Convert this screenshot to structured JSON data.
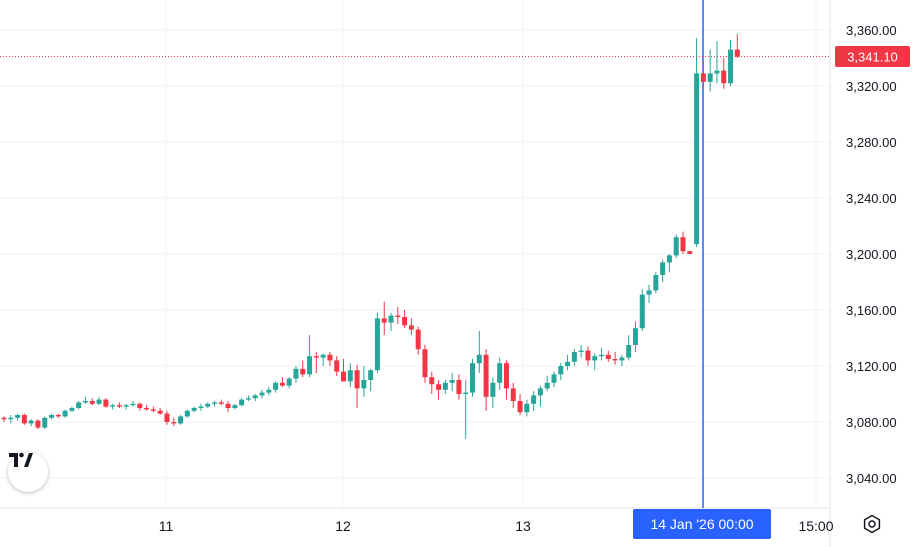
{
  "chart_data": {
    "type": "candlestick",
    "y_range": [
      3020,
      3370
    ],
    "y_ticks": [
      3040,
      3080,
      3120,
      3160,
      3200,
      3240,
      3280,
      3320,
      3360
    ],
    "y_tick_labels": [
      "3,040.00",
      "3,080.00",
      "3,120.00",
      "3,160.00",
      "3,200.00",
      "3,240.00",
      "3,280.00",
      "3,320.00",
      "3,360.00"
    ],
    "x_labels": [
      "11",
      "12",
      "13",
      "15:00"
    ],
    "grid": true,
    "last_price": 3341.1,
    "last_price_label": "3,341.10",
    "crosshair_label": "14 Jan '26   00:00",
    "colors": {
      "up": "#26a69a",
      "down": "#f23645",
      "crosshair": "#2962ff",
      "price_line": "#f23645",
      "grid": "#f0f3fa",
      "axis_text": "#131722"
    },
    "candles": [
      [
        3083,
        3084,
        3080,
        3082
      ],
      [
        3082,
        3085,
        3079,
        3083
      ],
      [
        3083,
        3086,
        3081,
        3085
      ],
      [
        3085,
        3086,
        3078,
        3079
      ],
      [
        3079,
        3082,
        3077,
        3081
      ],
      [
        3081,
        3082,
        3075,
        3076
      ],
      [
        3076,
        3084,
        3075,
        3083
      ],
      [
        3083,
        3086,
        3082,
        3085
      ],
      [
        3085,
        3086,
        3083,
        3084
      ],
      [
        3084,
        3089,
        3083,
        3088
      ],
      [
        3088,
        3091,
        3087,
        3090
      ],
      [
        3090,
        3095,
        3089,
        3094
      ],
      [
        3094,
        3098,
        3093,
        3095
      ],
      [
        3095,
        3097,
        3092,
        3093
      ],
      [
        3093,
        3098,
        3092,
        3096
      ],
      [
        3096,
        3097,
        3090,
        3091
      ],
      [
        3091,
        3093,
        3089,
        3092
      ],
      [
        3092,
        3094,
        3090,
        3091
      ],
      [
        3091,
        3093,
        3089,
        3092
      ],
      [
        3092,
        3095,
        3091,
        3093
      ],
      [
        3093,
        3094,
        3088,
        3090
      ],
      [
        3090,
        3092,
        3088,
        3089
      ],
      [
        3089,
        3091,
        3087,
        3088
      ],
      [
        3088,
        3090,
        3085,
        3086
      ],
      [
        3086,
        3088,
        3078,
        3080
      ],
      [
        3080,
        3083,
        3077,
        3079
      ],
      [
        3079,
        3085,
        3078,
        3084
      ],
      [
        3084,
        3089,
        3083,
        3088
      ],
      [
        3088,
        3091,
        3087,
        3090
      ],
      [
        3090,
        3093,
        3088,
        3091
      ],
      [
        3091,
        3094,
        3090,
        3093
      ],
      [
        3093,
        3095,
        3091,
        3094
      ],
      [
        3094,
        3096,
        3092,
        3093
      ],
      [
        3093,
        3095,
        3087,
        3090
      ],
      [
        3090,
        3093,
        3089,
        3092
      ],
      [
        3092,
        3097,
        3091,
        3096
      ],
      [
        3096,
        3099,
        3095,
        3097
      ],
      [
        3097,
        3100,
        3095,
        3099
      ],
      [
        3099,
        3103,
        3097,
        3101
      ],
      [
        3101,
        3105,
        3099,
        3103
      ],
      [
        3103,
        3109,
        3101,
        3108
      ],
      [
        3108,
        3112,
        3105,
        3106
      ],
      [
        3106,
        3112,
        3104,
        3111
      ],
      [
        3111,
        3120,
        3108,
        3118
      ],
      [
        3118,
        3124,
        3112,
        3114
      ],
      [
        3114,
        3142,
        3112,
        3127
      ],
      [
        3127,
        3130,
        3115,
        3126
      ],
      [
        3126,
        3129,
        3120,
        3128
      ],
      [
        3128,
        3130,
        3120,
        3124
      ],
      [
        3124,
        3127,
        3113,
        3116
      ],
      [
        3116,
        3125,
        3110,
        3109
      ],
      [
        3109,
        3122,
        3105,
        3117
      ],
      [
        3117,
        3121,
        3090,
        3104
      ],
      [
        3104,
        3120,
        3098,
        3110
      ],
      [
        3110,
        3118,
        3102,
        3117
      ],
      [
        3117,
        3158,
        3115,
        3154
      ],
      [
        3154,
        3166,
        3142,
        3151
      ],
      [
        3151,
        3158,
        3145,
        3156
      ],
      [
        3156,
        3162,
        3150,
        3155
      ],
      [
        3155,
        3160,
        3147,
        3149
      ],
      [
        3149,
        3154,
        3142,
        3146
      ],
      [
        3146,
        3148,
        3128,
        3132
      ],
      [
        3132,
        3135,
        3108,
        3112
      ],
      [
        3112,
        3116,
        3100,
        3107
      ],
      [
        3107,
        3110,
        3096,
        3103
      ],
      [
        3103,
        3110,
        3100,
        3108
      ],
      [
        3108,
        3115,
        3102,
        3110
      ],
      [
        3110,
        3114,
        3096,
        3100
      ],
      [
        3100,
        3110,
        3068,
        3101
      ],
      [
        3101,
        3125,
        3098,
        3122
      ],
      [
        3122,
        3145,
        3115,
        3128
      ],
      [
        3128,
        3132,
        3088,
        3098
      ],
      [
        3098,
        3112,
        3090,
        3108
      ],
      [
        3108,
        3126,
        3103,
        3122
      ],
      [
        3122,
        3124,
        3096,
        3104
      ],
      [
        3104,
        3108,
        3090,
        3095
      ],
      [
        3095,
        3100,
        3085,
        3087
      ],
      [
        3087,
        3096,
        3084,
        3093
      ],
      [
        3093,
        3102,
        3088,
        3099
      ],
      [
        3099,
        3106,
        3091,
        3104
      ],
      [
        3104,
        3113,
        3102,
        3108
      ],
      [
        3108,
        3116,
        3105,
        3114
      ],
      [
        3114,
        3122,
        3110,
        3120
      ],
      [
        3120,
        3128,
        3117,
        3123
      ],
      [
        3123,
        3132,
        3120,
        3130
      ],
      [
        3130,
        3135,
        3126,
        3131
      ],
      [
        3131,
        3134,
        3120,
        3124
      ],
      [
        3124,
        3129,
        3117,
        3127
      ],
      [
        3127,
        3133,
        3124,
        3128
      ],
      [
        3128,
        3131,
        3123,
        3125
      ],
      [
        3125,
        3130,
        3121,
        3124
      ],
      [
        3124,
        3128,
        3120,
        3126
      ],
      [
        3126,
        3142,
        3124,
        3135
      ],
      [
        3135,
        3152,
        3130,
        3147
      ],
      [
        3147,
        3175,
        3145,
        3171
      ],
      [
        3171,
        3178,
        3165,
        3174
      ],
      [
        3174,
        3187,
        3172,
        3185
      ],
      [
        3185,
        3196,
        3180,
        3194
      ],
      [
        3194,
        3200,
        3187,
        3199
      ],
      [
        3199,
        3214,
        3197,
        3212
      ],
      [
        3212,
        3216,
        3200,
        3202
      ],
      [
        3202,
        3202,
        3200,
        3200
      ],
      [
        3207,
        3354,
        3205,
        3329
      ],
      [
        3329,
        3338,
        3318,
        3323
      ],
      [
        3323,
        3346,
        3316,
        3329
      ],
      [
        3329,
        3352,
        3322,
        3331
      ],
      [
        3331,
        3340,
        3318,
        3322
      ],
      [
        3322,
        3353,
        3320,
        3346
      ],
      [
        3346,
        3357,
        3340,
        3341
      ]
    ]
  },
  "ui": {
    "logo_icon": "tradingview-logo-icon",
    "settings_icon": "gear-icon"
  }
}
